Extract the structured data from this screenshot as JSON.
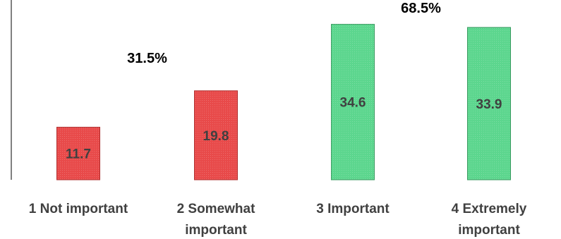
{
  "chart_data": {
    "type": "bar",
    "categories": [
      [
        "1 Not important"
      ],
      [
        "2 Somewhat",
        "important"
      ],
      [
        "3 Important"
      ],
      [
        "4 Extremely",
        "important"
      ]
    ],
    "values": [
      11.7,
      19.8,
      34.6,
      33.9
    ],
    "ylim": [
      0,
      40
    ],
    "grid": false,
    "colors": [
      "#e84a4a",
      "#e84a4a",
      "#5cd68e",
      "#5cd68e"
    ],
    "bar_border_colors": [
      "#b03030",
      "#b03030",
      "#3a9a60",
      "#3a9a60"
    ],
    "group_annotations": [
      {
        "label": "31.5%",
        "categories": [
          0,
          1
        ]
      },
      {
        "label": "68.5%",
        "categories": [
          2,
          3
        ]
      }
    ]
  },
  "colors": {
    "axis": "#000000",
    "text": "#404040",
    "annotation": "#000000"
  }
}
